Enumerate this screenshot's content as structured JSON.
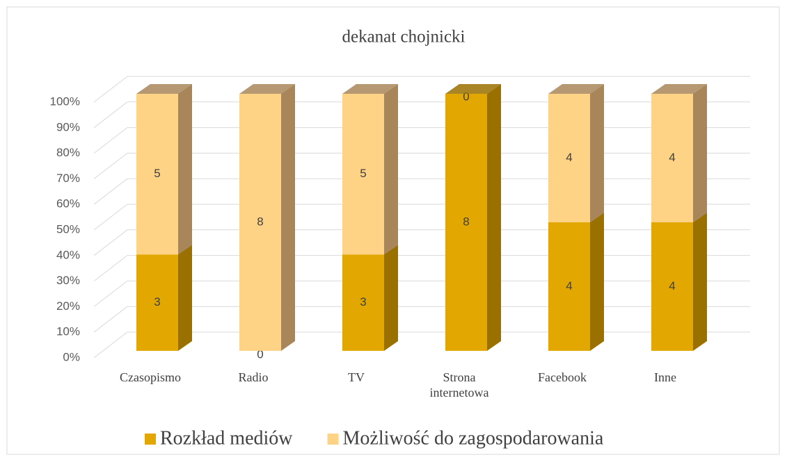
{
  "chart_data": {
    "type": "bar3d",
    "stacked": "percent",
    "title": "dekanat chojnicki",
    "categories": [
      "Czasopismo",
      "Radio",
      "TV",
      "Strona internetowa",
      "Facebook",
      "Inne"
    ],
    "series": [
      {
        "name": "Rozkład mediów",
        "color": "#e2a700",
        "side_color": "#9a7000",
        "values": [
          3,
          0,
          3,
          8,
          4,
          4
        ]
      },
      {
        "name": "Możliwość do zagospodarowania",
        "color": "#ffd385",
        "side_color": "#a9865a",
        "values": [
          5,
          8,
          5,
          0,
          4,
          4
        ]
      }
    ],
    "ylim": [
      0,
      100
    ],
    "yticks": [
      {
        "value": 0,
        "label": "0%"
      },
      {
        "value": 10,
        "label": "10%"
      },
      {
        "value": 20,
        "label": "20%"
      },
      {
        "value": 30,
        "label": "30%"
      },
      {
        "value": 40,
        "label": "40%"
      },
      {
        "value": 50,
        "label": "50%"
      },
      {
        "value": 60,
        "label": "60%"
      },
      {
        "value": 70,
        "label": "70%"
      },
      {
        "value": 80,
        "label": "80%"
      },
      {
        "value": 90,
        "label": "90%"
      },
      {
        "value": 100,
        "label": "100%"
      }
    ],
    "grid": true,
    "legend": "bottom"
  }
}
